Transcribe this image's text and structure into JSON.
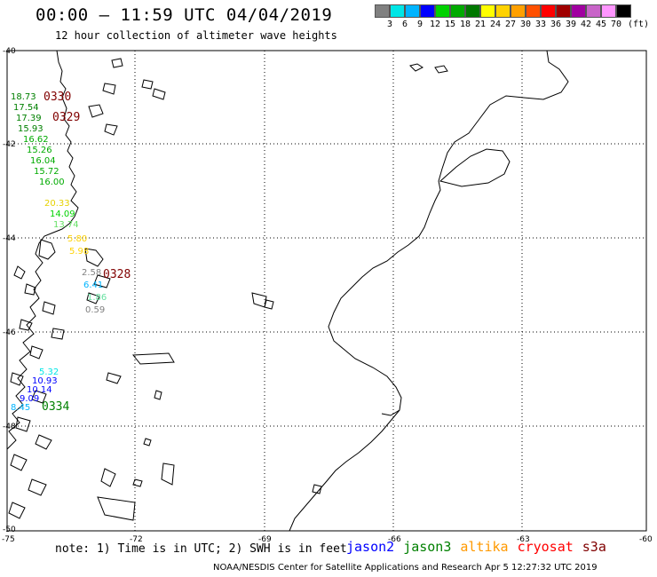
{
  "header": {
    "title": "00:00 – 11:59 UTC 04/04/2019",
    "subtitle": "12 hour collection of altimeter wave heights"
  },
  "colorbar": {
    "unit": "(ft)",
    "labels": [
      "3",
      "6",
      "9",
      "12",
      "15",
      "18",
      "21",
      "24",
      "27",
      "30",
      "33",
      "36",
      "39",
      "42",
      "45",
      "70"
    ],
    "colors": [
      "#808080",
      "#00e6e6",
      "#00b4ff",
      "#0000ff",
      "#00d200",
      "#00aa00",
      "#007800",
      "#ffff00",
      "#ffd200",
      "#ffa000",
      "#ff5000",
      "#ff0000",
      "#a00000",
      "#a000a0",
      "#c864c8",
      "#ff96ff",
      "#000000"
    ]
  },
  "axes": {
    "lat_labels": [
      "-40",
      "-42",
      "-44",
      "-46",
      "-48",
      "-50"
    ],
    "lon_labels": [
      "-75",
      "-72",
      "-69",
      "-66",
      "-63",
      "-60"
    ]
  },
  "passes": [
    {
      "label": "0330",
      "color": "#800000"
    },
    {
      "label": "0329",
      "color": "#800000"
    },
    {
      "label": "0328",
      "color": "#800000"
    },
    {
      "label": "0334",
      "color": "#008000"
    }
  ],
  "swh_labels": [
    {
      "text": "18.73",
      "color": "#008000"
    },
    {
      "text": "17.54",
      "color": "#008000"
    },
    {
      "text": "17.39",
      "color": "#008000"
    },
    {
      "text": "15.93",
      "color": "#008000"
    },
    {
      "text": "16.62",
      "color": "#00aa00"
    },
    {
      "text": "15.26",
      "color": "#00aa00"
    },
    {
      "text": "16.04",
      "color": "#00aa00"
    },
    {
      "text": "15.72",
      "color": "#00aa00"
    },
    {
      "text": "16.00",
      "color": "#00aa00"
    },
    {
      "text": "20.33",
      "color": "#e6d200"
    },
    {
      "text": "14.09",
      "color": "#00d200"
    },
    {
      "text": "13.74",
      "color": "#66e066"
    },
    {
      "text": "5.80",
      "color": "#ffd200"
    },
    {
      "text": "5.98",
      "color": "#ffd200"
    },
    {
      "text": "2.58",
      "color": "#808080"
    },
    {
      "text": "6.41",
      "color": "#00b4ff"
    },
    {
      "text": "1.86",
      "color": "#66e0a0"
    },
    {
      "text": "0.59",
      "color": "#808080"
    },
    {
      "text": "5.32",
      "color": "#00e6e6"
    },
    {
      "text": "10.93",
      "color": "#0000ff"
    },
    {
      "text": "10.14",
      "color": "#0000ff"
    },
    {
      "text": "9.09",
      "color": "#0000ff"
    },
    {
      "text": "8.45",
      "color": "#00b4ff"
    }
  ],
  "note": "note:  1) Time is in UTC;  2) SWH is in feet",
  "legend": [
    {
      "text": "jason2",
      "color": "#0000ff"
    },
    {
      "text": "jason3",
      "color": "#008000"
    },
    {
      "text": "altika",
      "color": "#ff9900"
    },
    {
      "text": "cryosat",
      "color": "#ff0000"
    },
    {
      "text": "s3a",
      "color": "#800000"
    }
  ],
  "footer": "NOAA/NESDIS Center for Satellite Applications and Research    Apr  5 12:27:32 UTC 2019"
}
